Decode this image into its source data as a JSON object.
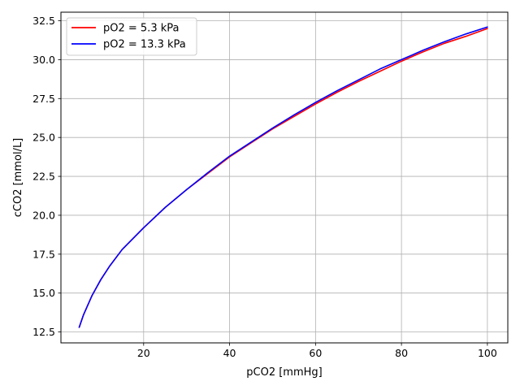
{
  "chart_data": {
    "type": "line",
    "title": "",
    "xlabel": "pCO2 [mmHg]",
    "ylabel": "cCO2 [mmol/L]",
    "xlim": [
      0.75,
      104.75
    ],
    "ylim": [
      11.8,
      33.05
    ],
    "x_ticks": [
      20,
      40,
      60,
      80,
      100
    ],
    "y_ticks": [
      12.5,
      15.0,
      17.5,
      20.0,
      22.5,
      25.0,
      27.5,
      30.0,
      32.5
    ],
    "x_tick_labels": [
      "20",
      "40",
      "60",
      "80",
      "100"
    ],
    "y_tick_labels": [
      "12.5",
      "15.0",
      "17.5",
      "20.0",
      "22.5",
      "25.0",
      "27.5",
      "30.0",
      "32.5"
    ],
    "grid": true,
    "legend_position": "top-left",
    "series": [
      {
        "name": "pO2 = 5.3 kPa",
        "color": "#ff0000",
        "x": [
          5,
          6,
          8,
          10,
          12,
          15,
          20,
          25,
          30,
          35,
          40,
          45,
          50,
          55,
          60,
          65,
          70,
          75,
          80,
          85,
          90,
          95,
          100
        ],
        "y": [
          12.8,
          13.6,
          14.85,
          15.85,
          16.7,
          17.8,
          19.2,
          20.5,
          21.65,
          22.7,
          23.75,
          24.65,
          25.55,
          26.35,
          27.15,
          27.9,
          28.6,
          29.25,
          29.9,
          30.5,
          31.05,
          31.5,
          32.0
        ]
      },
      {
        "name": "pO2 = 13.3 kPa",
        "color": "#0000ff",
        "x": [
          5,
          6,
          8,
          10,
          12,
          15,
          20,
          25,
          30,
          35,
          40,
          45,
          50,
          55,
          60,
          65,
          70,
          75,
          80,
          85,
          90,
          95,
          100
        ],
        "y": [
          12.8,
          13.6,
          14.85,
          15.85,
          16.7,
          17.8,
          19.2,
          20.5,
          21.65,
          22.75,
          23.8,
          24.7,
          25.6,
          26.45,
          27.25,
          28.0,
          28.7,
          29.4,
          30.0,
          30.6,
          31.15,
          31.65,
          32.1
        ]
      }
    ]
  }
}
